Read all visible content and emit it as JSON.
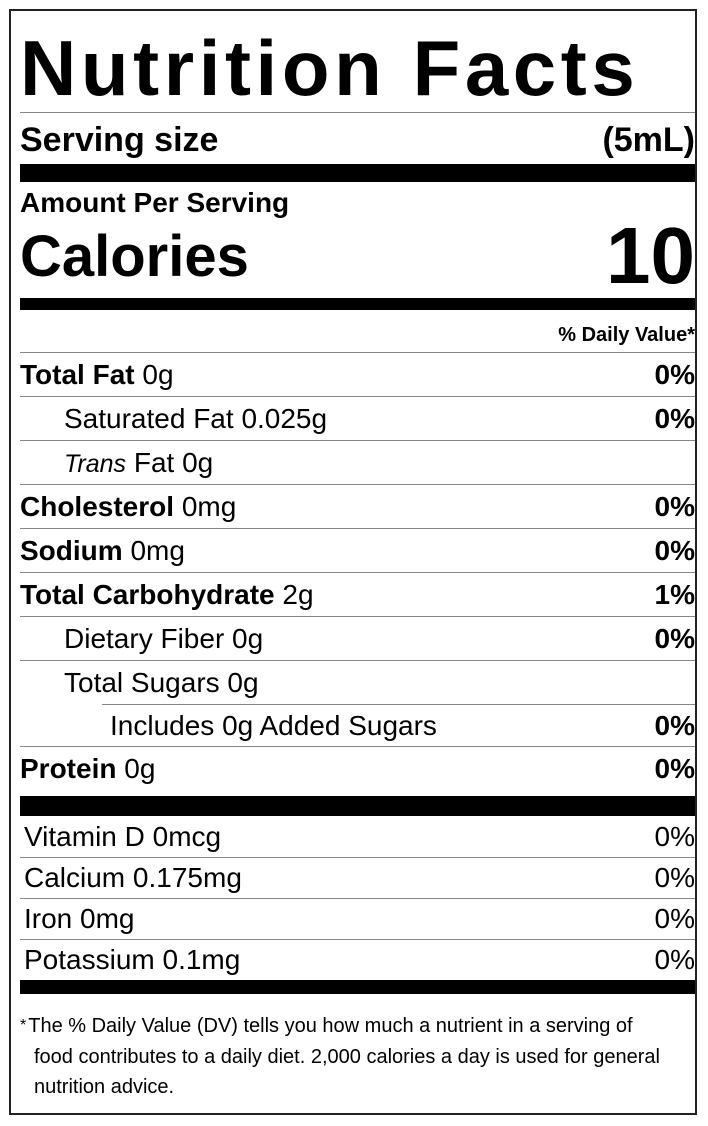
{
  "header": {
    "title": "Nutrition Facts",
    "serving_label": "Serving size",
    "serving_value": "(5mL)"
  },
  "calories": {
    "amount_label": "Amount Per Serving",
    "label": "Calories",
    "value": "10"
  },
  "dv_header": "% Daily Value*",
  "nutrients": [
    {
      "name": "Total Fat",
      "amount": "0g",
      "dv": "0%"
    },
    {
      "name": "Saturated Fat",
      "amount": "0.025g",
      "dv": "0%"
    },
    {
      "name_italic": "Trans",
      "name": "Fat",
      "amount": "0g"
    },
    {
      "name": "Cholesterol",
      "amount": "0mg",
      "dv": "0%"
    },
    {
      "name": "Sodium",
      "amount": "0mg",
      "dv": "0%"
    },
    {
      "name": "Total Carbohydrate",
      "amount": "2g",
      "dv": "1%"
    },
    {
      "name": "Dietary Fiber",
      "amount": "0g",
      "dv": "0%"
    },
    {
      "name": "Total Sugars",
      "amount": "0g"
    },
    {
      "prefix": "Includes",
      "amount": "0g",
      "name": "Added Sugars",
      "dv": "0%"
    },
    {
      "name": "Protein",
      "amount": "0g",
      "dv": "0%"
    }
  ],
  "vitamins": [
    {
      "name": "Vitamin D",
      "amount": "0mcg",
      "dv": "0%"
    },
    {
      "name": "Calcium",
      "amount": "0.175mg",
      "dv": "0%"
    },
    {
      "name": "Iron",
      "amount": "0mg",
      "dv": "0%"
    },
    {
      "name": "Potassium",
      "amount": "0.1mg",
      "dv": "0%"
    }
  ],
  "footnote": {
    "marker": "*",
    "text": "The % Daily Value (DV) tells you how much a nutrient in a serving of food contributes to a daily diet. 2,000 calories a day is used for general nutrition advice."
  }
}
